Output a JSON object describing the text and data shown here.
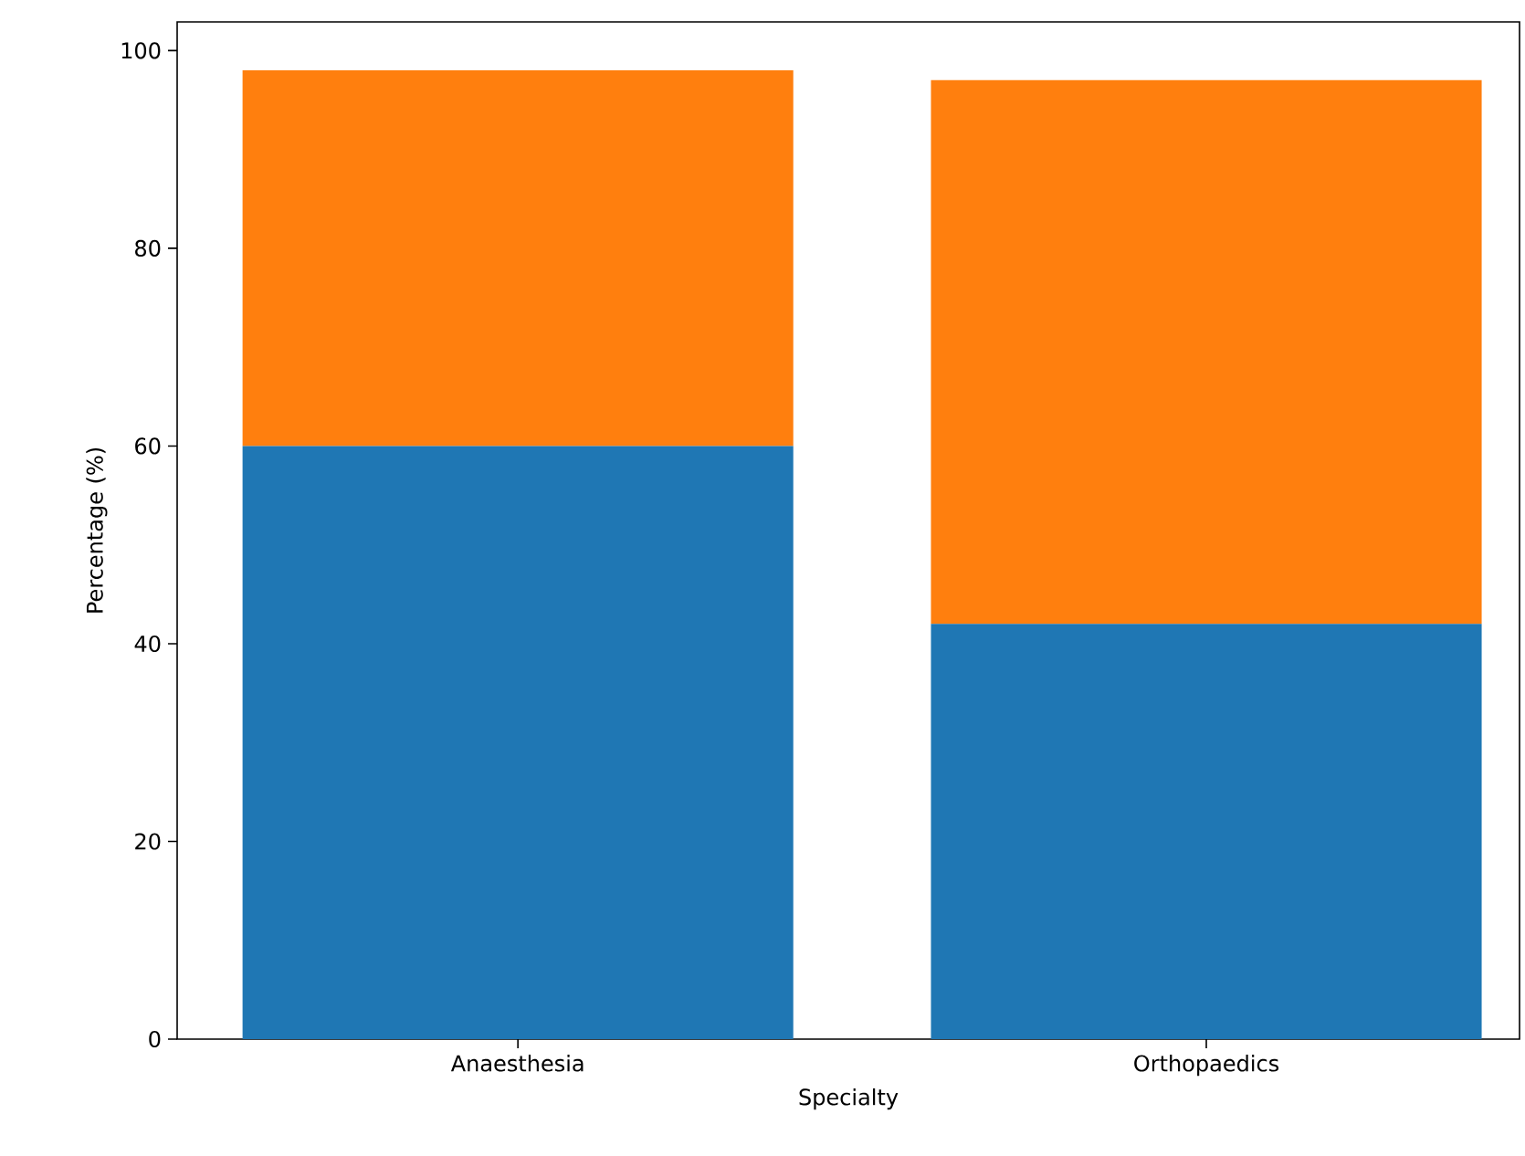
{
  "chart_data": {
    "type": "bar",
    "stacked": true,
    "xlabel": "Specialty",
    "ylabel": "Percentage (%)",
    "categories": [
      "Anaesthesia",
      "Orthopaedics"
    ],
    "series": [
      {
        "color": "#1f77b4",
        "values": [
          60,
          42
        ]
      },
      {
        "color": "#ff7f0e",
        "values": [
          38,
          55
        ]
      }
    ],
    "ylim": [
      0,
      102.9
    ],
    "yticks": [
      0,
      20,
      40,
      60,
      80,
      100
    ]
  }
}
